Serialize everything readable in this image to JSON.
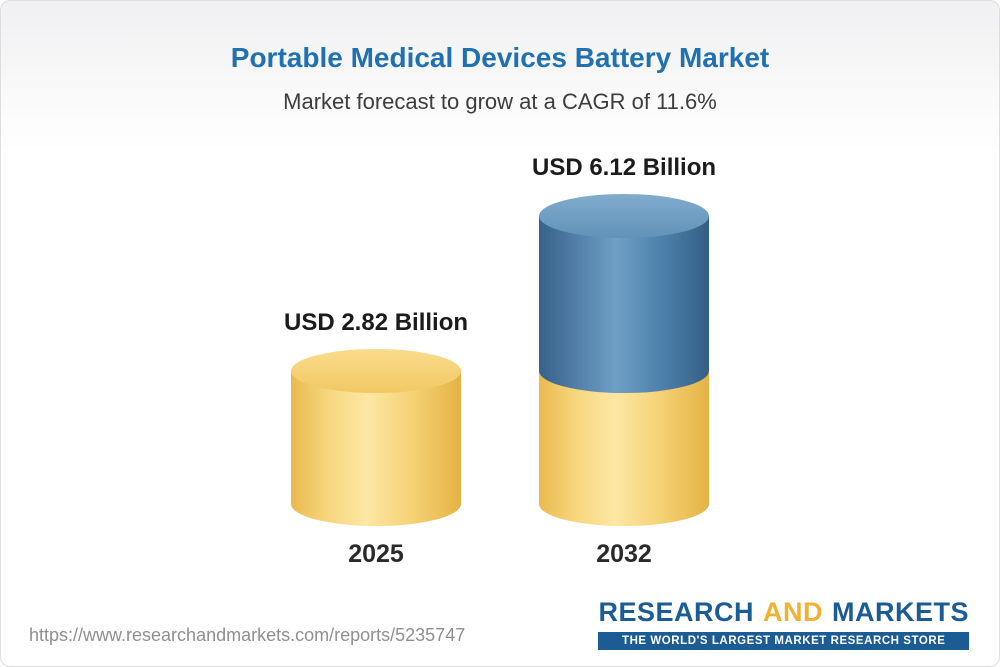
{
  "header": {
    "title": "Portable Medical Devices Battery Market",
    "subtitle": "Market forecast to grow at a CAGR of 11.6%"
  },
  "chart_data": {
    "type": "bar",
    "subtype": "3d-cylinder",
    "title": "Portable Medical Devices Battery Market",
    "subtitle": "Market forecast to grow at a CAGR of 11.6%",
    "cagr_percent": 11.6,
    "unit": "USD Billion",
    "categories": [
      "2025",
      "2032"
    ],
    "values": [
      2.82,
      6.12
    ],
    "ylim": [
      0,
      6.5
    ],
    "grid": false,
    "legend": false,
    "bars": [
      {
        "category": "2025",
        "label": "USD 2.82 Billion",
        "total": 2.82,
        "segments": [
          {
            "color": "#f5d173",
            "value": 2.82
          }
        ]
      },
      {
        "category": "2032",
        "label": "USD 6.12 Billion",
        "total": 6.12,
        "segments": [
          {
            "color": "#f5d173",
            "value": 2.82
          },
          {
            "color": "#4d81ab",
            "value": 3.3
          }
        ]
      }
    ]
  },
  "colors": {
    "title_blue": "#2171b1",
    "bar_yellow": "#f5d173",
    "bar_blue": "#4d81ab",
    "logo_blue": "#1c5c95",
    "logo_gold": "#f0b233"
  },
  "footer": {
    "url": "https://www.researchandmarkets.com/reports/5235747",
    "logo": {
      "research": "RESEARCH",
      "and": "AND",
      "markets": "MARKETS",
      "tagline": "THE WORLD'S LARGEST MARKET RESEARCH STORE"
    }
  }
}
